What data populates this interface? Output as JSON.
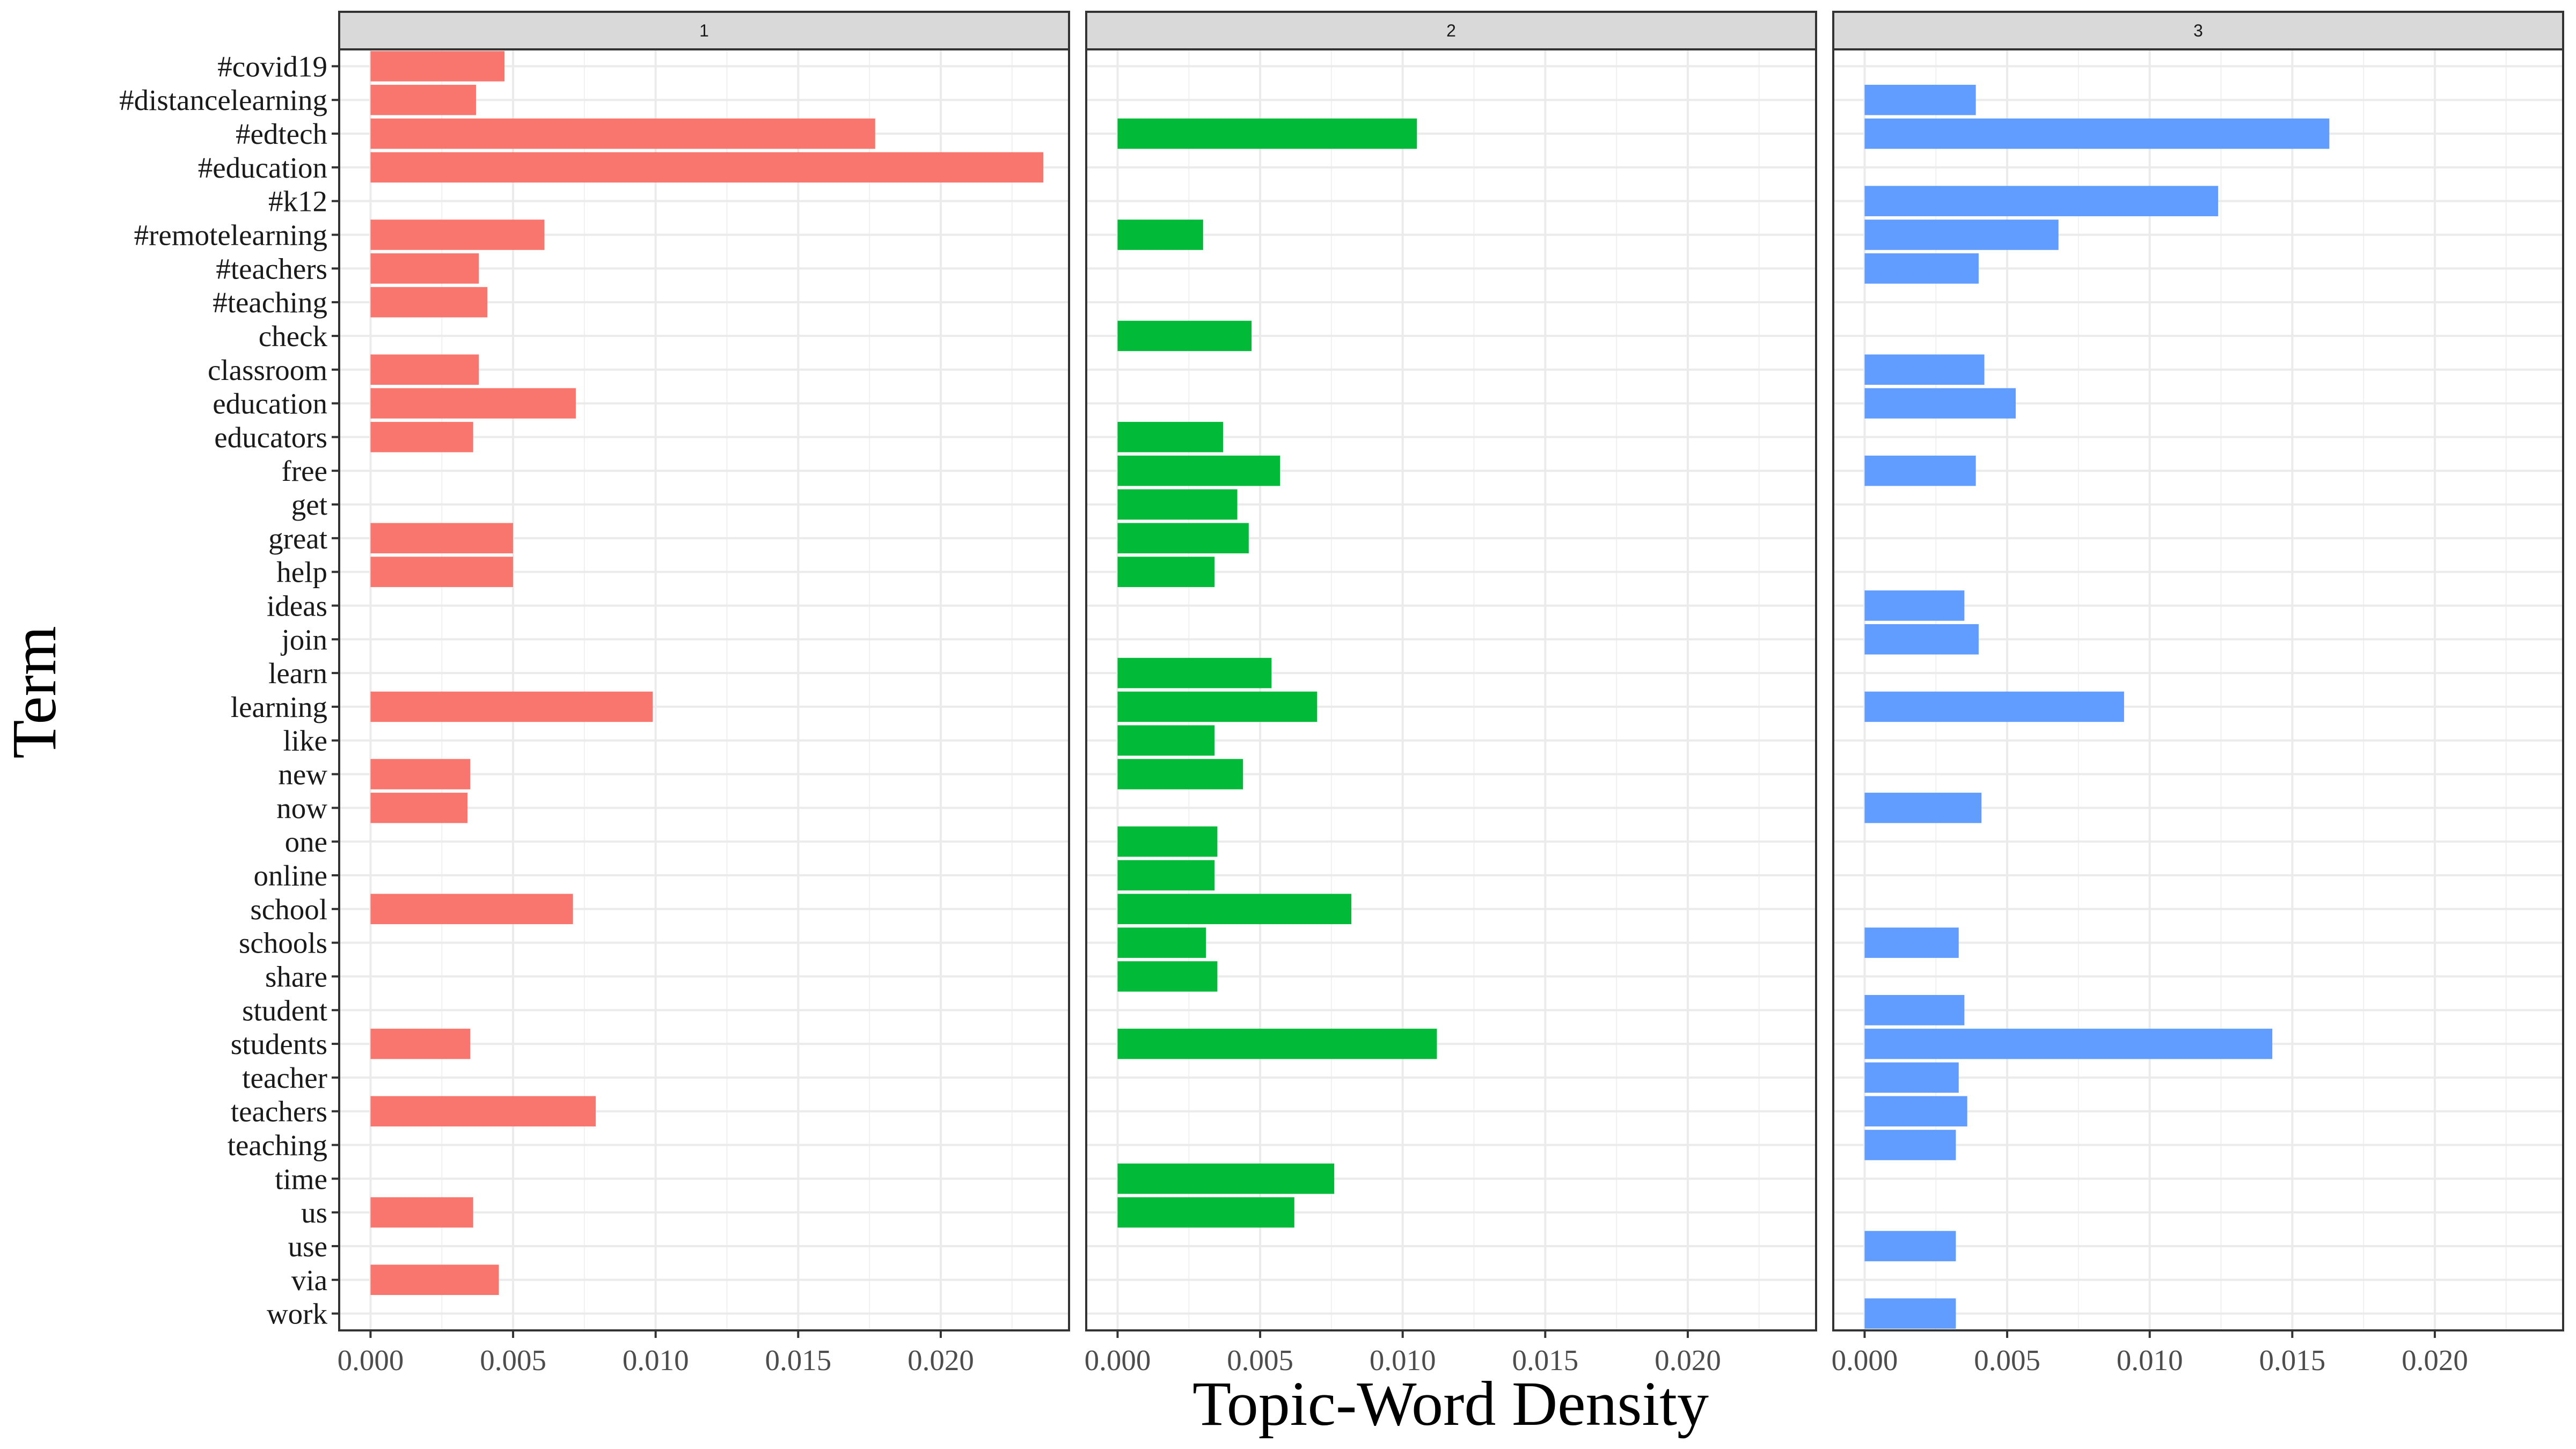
{
  "chart_data": {
    "type": "bar",
    "orientation": "horizontal",
    "facets": [
      "1",
      "2",
      "3"
    ],
    "xlabel": "Topic-Word Density",
    "ylabel": "Term",
    "xlim": [
      -0.0011,
      0.0245
    ],
    "x_ticks": [
      "0.000",
      "0.005",
      "0.010",
      "0.015",
      "0.020"
    ],
    "x_tick_values": [
      0,
      0.005,
      0.01,
      0.015,
      0.02
    ],
    "grid": true,
    "categories": [
      "#covid19",
      "#distancelearning",
      "#edtech",
      "#education",
      "#k12",
      "#remotelearning",
      "#teachers",
      "#teaching",
      "check",
      "classroom",
      "education",
      "educators",
      "free",
      "get",
      "great",
      "help",
      "ideas",
      "join",
      "learn",
      "learning",
      "like",
      "new",
      "now",
      "one",
      "online",
      "school",
      "schools",
      "share",
      "student",
      "students",
      "teacher",
      "teachers",
      "teaching",
      "time",
      "us",
      "use",
      "via",
      "work"
    ],
    "series": [
      {
        "name": "1",
        "color": "#F8766D",
        "values": [
          0.0047,
          0.0037,
          0.0177,
          0.0236,
          null,
          0.0061,
          0.0038,
          0.0041,
          null,
          0.0038,
          0.0072,
          0.0036,
          null,
          null,
          0.005,
          0.005,
          null,
          null,
          null,
          0.0099,
          null,
          0.0035,
          0.0034,
          null,
          null,
          0.0071,
          null,
          null,
          null,
          0.0035,
          null,
          0.0079,
          null,
          null,
          0.0036,
          null,
          0.0045,
          null
        ]
      },
      {
        "name": "2",
        "color": "#00BA38",
        "values": [
          null,
          null,
          0.0105,
          null,
          null,
          0.003,
          null,
          null,
          0.0047,
          null,
          null,
          0.0037,
          0.0057,
          0.0042,
          0.0046,
          0.0034,
          null,
          null,
          0.0054,
          0.007,
          0.0034,
          0.0044,
          null,
          0.0035,
          0.0034,
          0.0082,
          0.0031,
          0.0035,
          null,
          0.0112,
          null,
          null,
          null,
          0.0076,
          0.0062,
          null,
          null,
          null
        ]
      },
      {
        "name": "3",
        "color": "#619CFF",
        "values": [
          null,
          0.0039,
          0.0163,
          null,
          0.0124,
          0.0068,
          0.004,
          null,
          null,
          0.0042,
          0.0053,
          null,
          0.0039,
          null,
          null,
          null,
          0.0035,
          0.004,
          null,
          0.0091,
          null,
          null,
          0.0041,
          null,
          null,
          null,
          0.0033,
          null,
          0.0035,
          0.0143,
          0.0033,
          0.0036,
          0.0032,
          null,
          null,
          0.0032,
          null,
          0.0032
        ]
      }
    ]
  }
}
